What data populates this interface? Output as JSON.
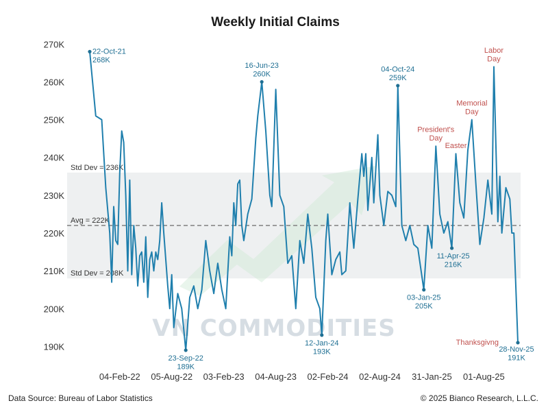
{
  "chart_data": {
    "type": "line",
    "title": "Weekly Initial Claims",
    "xlabel": "",
    "ylabel": "",
    "ylim": [
      187000,
      271500
    ],
    "y_ticks": [
      {
        "value": 190000,
        "label": "190K"
      },
      {
        "value": 200000,
        "label": "200K"
      },
      {
        "value": 210000,
        "label": "210K"
      },
      {
        "value": 220000,
        "label": "220K"
      },
      {
        "value": 230000,
        "label": "230K"
      },
      {
        "value": 240000,
        "label": "240K"
      },
      {
        "value": 250000,
        "label": "250K"
      },
      {
        "value": 260000,
        "label": "260K"
      },
      {
        "value": 270000,
        "label": "270K"
      }
    ],
    "x_range": [
      "2021-10-22",
      "2025-11-28"
    ],
    "x_ticks": [
      {
        "date": "2022-02-04",
        "label": "04-Feb-22"
      },
      {
        "date": "2022-08-05",
        "label": "05-Aug-22"
      },
      {
        "date": "2023-02-03",
        "label": "03-Feb-23"
      },
      {
        "date": "2023-08-04",
        "label": "04-Aug-23"
      },
      {
        "date": "2024-02-02",
        "label": "02-Feb-24"
      },
      {
        "date": "2024-08-02",
        "label": "02-Aug-24"
      },
      {
        "date": "2025-01-31",
        "label": "31-Jan-25"
      },
      {
        "date": "2025-08-01",
        "label": "01-Aug-25"
      }
    ],
    "grid": false,
    "series": [
      {
        "color": "#1f7fad",
        "points": [
          [
            "2021-10-22",
            268000
          ],
          [
            "2021-11-12",
            251000
          ],
          [
            "2021-12-03",
            250000
          ],
          [
            "2021-12-17",
            232000
          ],
          [
            "2021-12-31",
            220000
          ],
          [
            "2022-01-07",
            207000
          ],
          [
            "2022-01-14",
            227000
          ],
          [
            "2022-01-21",
            218000
          ],
          [
            "2022-01-28",
            217000
          ],
          [
            "2022-02-04",
            236000
          ],
          [
            "2022-02-11",
            247000
          ],
          [
            "2022-02-18",
            244000
          ],
          [
            "2022-02-25",
            230000
          ],
          [
            "2022-03-04",
            210000
          ],
          [
            "2022-03-11",
            234000
          ],
          [
            "2022-03-18",
            209000
          ],
          [
            "2022-03-25",
            222000
          ],
          [
            "2022-04-01",
            216000
          ],
          [
            "2022-04-08",
            206000
          ],
          [
            "2022-04-15",
            214000
          ],
          [
            "2022-04-22",
            215000
          ],
          [
            "2022-04-29",
            207000
          ],
          [
            "2022-05-06",
            219000
          ],
          [
            "2022-05-13",
            203000
          ],
          [
            "2022-05-20",
            213000
          ],
          [
            "2022-05-27",
            215000
          ],
          [
            "2022-06-03",
            210000
          ],
          [
            "2022-06-10",
            215000
          ],
          [
            "2022-06-17",
            213000
          ],
          [
            "2022-06-24",
            218000
          ],
          [
            "2022-07-01",
            228000
          ],
          [
            "2022-07-08",
            220000
          ],
          [
            "2022-07-15",
            213000
          ],
          [
            "2022-07-22",
            206000
          ],
          [
            "2022-07-29",
            200000
          ],
          [
            "2022-08-05",
            209000
          ],
          [
            "2022-08-12",
            195000
          ],
          [
            "2022-08-26",
            204000
          ],
          [
            "2022-09-09",
            200000
          ],
          [
            "2022-09-23",
            189000
          ],
          [
            "2022-10-07",
            203000
          ],
          [
            "2022-10-21",
            206000
          ],
          [
            "2022-11-04",
            200000
          ],
          [
            "2022-11-18",
            205000
          ],
          [
            "2022-12-02",
            218000
          ],
          [
            "2022-12-16",
            210000
          ],
          [
            "2022-12-30",
            204000
          ],
          [
            "2023-01-13",
            212000
          ],
          [
            "2023-01-27",
            205000
          ],
          [
            "2023-02-10",
            200000
          ],
          [
            "2023-02-24",
            219000
          ],
          [
            "2023-03-03",
            214000
          ],
          [
            "2023-03-10",
            228000
          ],
          [
            "2023-03-17",
            222000
          ],
          [
            "2023-03-24",
            233000
          ],
          [
            "2023-03-31",
            234000
          ],
          [
            "2023-04-07",
            222000
          ],
          [
            "2023-04-14",
            218000
          ],
          [
            "2023-04-28",
            225000
          ],
          [
            "2023-05-12",
            229000
          ],
          [
            "2023-05-26",
            245000
          ],
          [
            "2023-06-02",
            251000
          ],
          [
            "2023-06-16",
            260000
          ],
          [
            "2023-06-30",
            247000
          ],
          [
            "2023-07-14",
            230000
          ],
          [
            "2023-07-21",
            227000
          ],
          [
            "2023-08-04",
            258000
          ],
          [
            "2023-08-18",
            230000
          ],
          [
            "2023-09-01",
            227000
          ],
          [
            "2023-09-15",
            212000
          ],
          [
            "2023-09-29",
            214000
          ],
          [
            "2023-10-13",
            200000
          ],
          [
            "2023-10-27",
            218000
          ],
          [
            "2023-11-10",
            212000
          ],
          [
            "2023-11-24",
            225000
          ],
          [
            "2023-12-08",
            216000
          ],
          [
            "2023-12-22",
            203000
          ],
          [
            "2024-01-05",
            200000
          ],
          [
            "2024-01-12",
            193000
          ],
          [
            "2024-01-26",
            218000
          ],
          [
            "2024-02-02",
            225000
          ],
          [
            "2024-02-16",
            209000
          ],
          [
            "2024-03-01",
            213000
          ],
          [
            "2024-03-15",
            215000
          ],
          [
            "2024-03-22",
            209000
          ],
          [
            "2024-04-05",
            210000
          ],
          [
            "2024-04-19",
            228000
          ],
          [
            "2024-05-03",
            216000
          ],
          [
            "2024-05-17",
            229000
          ],
          [
            "2024-05-31",
            241000
          ],
          [
            "2024-06-07",
            235000
          ],
          [
            "2024-06-14",
            241000
          ],
          [
            "2024-06-21",
            226000
          ],
          [
            "2024-07-05",
            240000
          ],
          [
            "2024-07-12",
            228000
          ],
          [
            "2024-07-26",
            246000
          ],
          [
            "2024-08-02",
            230000
          ],
          [
            "2024-08-16",
            222000
          ],
          [
            "2024-08-30",
            231000
          ],
          [
            "2024-09-13",
            230000
          ],
          [
            "2024-09-27",
            227000
          ],
          [
            "2024-10-04",
            259000
          ],
          [
            "2024-10-18",
            222000
          ],
          [
            "2024-11-01",
            218000
          ],
          [
            "2024-11-15",
            222000
          ],
          [
            "2024-11-29",
            217000
          ],
          [
            "2024-12-13",
            216000
          ],
          [
            "2025-01-03",
            205000
          ],
          [
            "2025-01-17",
            222000
          ],
          [
            "2025-01-31",
            216000
          ],
          [
            "2025-02-14",
            243000
          ],
          [
            "2025-02-28",
            225000
          ],
          [
            "2025-03-14",
            220000
          ],
          [
            "2025-03-28",
            223000
          ],
          [
            "2025-04-11",
            216000
          ],
          [
            "2025-04-25",
            241000
          ],
          [
            "2025-05-09",
            228000
          ],
          [
            "2025-05-23",
            224000
          ],
          [
            "2025-06-06",
            242000
          ],
          [
            "2025-06-20",
            250000
          ],
          [
            "2025-07-04",
            233000
          ],
          [
            "2025-07-18",
            217000
          ],
          [
            "2025-08-01",
            224000
          ],
          [
            "2025-08-15",
            234000
          ],
          [
            "2025-08-29",
            225000
          ],
          [
            "2025-09-05",
            264000
          ],
          [
            "2025-09-19",
            223000
          ],
          [
            "2025-09-26",
            235000
          ],
          [
            "2025-10-03",
            220000
          ],
          [
            "2025-10-17",
            232000
          ],
          [
            "2025-10-31",
            229000
          ],
          [
            "2025-11-07",
            220000
          ],
          [
            "2025-11-14",
            220000
          ],
          [
            "2025-11-28",
            191000
          ]
        ]
      }
    ],
    "reference_lines": [
      {
        "value": 222000,
        "label": "Avg = 222K",
        "style": "dashed",
        "color": "#888888"
      }
    ],
    "bands": [
      {
        "from": 208000,
        "to": 236000,
        "label_top": "Std Dev = 236K",
        "label_bottom": "Std Dev = 208K",
        "color": "#eef0f1"
      }
    ],
    "annotations": [
      {
        "date": "2021-10-22",
        "value": 268000,
        "lines": [
          "22-Oct-21",
          "268K"
        ],
        "color": "#1f6f93",
        "pos": "right"
      },
      {
        "date": "2022-09-23",
        "value": 189000,
        "lines": [
          "23-Sep-22",
          "189K"
        ],
        "color": "#1f6f93",
        "pos": "below"
      },
      {
        "date": "2023-06-16",
        "value": 260000,
        "lines": [
          "16-Jun-23",
          "260K"
        ],
        "color": "#1f6f93",
        "pos": "above"
      },
      {
        "date": "2024-01-12",
        "value": 193000,
        "lines": [
          "12-Jan-24",
          "193K"
        ],
        "color": "#1f6f93",
        "pos": "below"
      },
      {
        "date": "2024-10-04",
        "value": 259000,
        "lines": [
          "04-Oct-24",
          "259K"
        ],
        "color": "#1f6f93",
        "pos": "above"
      },
      {
        "date": "2025-01-03",
        "value": 205000,
        "lines": [
          "03-Jan-25",
          "205K"
        ],
        "color": "#1f6f93",
        "pos": "below"
      },
      {
        "date": "2025-04-11",
        "value": 216000,
        "lines": [
          "11-Apr-25",
          "216K"
        ],
        "color": "#1f6f93",
        "pos": "below"
      },
      {
        "date": "2025-11-28",
        "value": 191000,
        "lines": [
          "28-Nov-25",
          "191K"
        ],
        "color": "#1f6f93",
        "pos": "below"
      },
      {
        "date": "2025-09-05",
        "value": 264000,
        "lines": [
          "Labor",
          "Day"
        ],
        "color": "#c0504d",
        "pos": "above"
      },
      {
        "date": "2025-06-20",
        "value": 250000,
        "lines": [
          "Memorial",
          "Day"
        ],
        "color": "#c0504d",
        "pos": "above"
      },
      {
        "date": "2025-02-14",
        "value": 243000,
        "lines": [
          "President's",
          "Day"
        ],
        "color": "#c0504d",
        "pos": "above"
      },
      {
        "date": "2025-04-25",
        "value": 241000,
        "lines": [
          "Easter"
        ],
        "color": "#c0504d",
        "pos": "above"
      },
      {
        "date": "2025-11-28",
        "value": 191000,
        "lines": [
          "Thanksgivng"
        ],
        "color": "#c0504d",
        "pos": "left"
      }
    ]
  },
  "watermark": "VN COMMODITIES",
  "footer": {
    "source": "Data Source: Bureau of Labor Statistics",
    "copyright": "© 2025 Bianco Research, L.L.C."
  }
}
